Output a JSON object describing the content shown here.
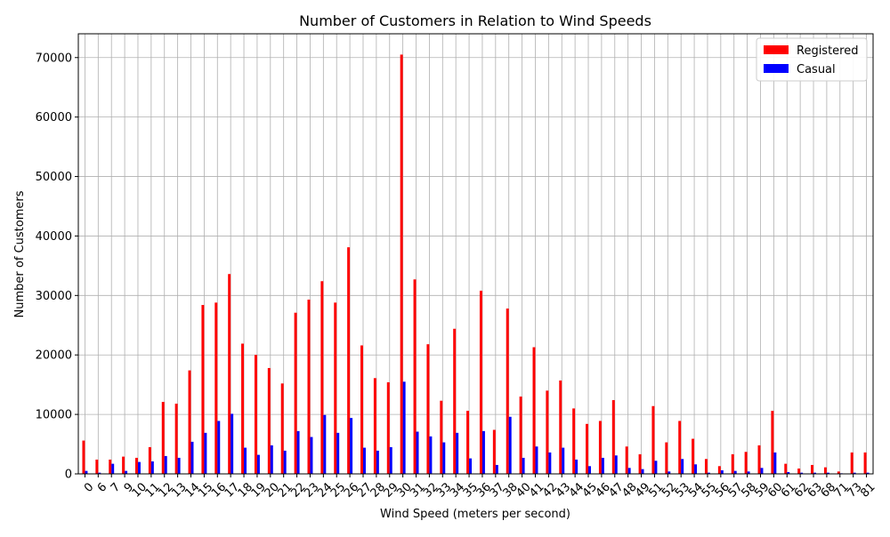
{
  "chart_data": {
    "type": "bar",
    "title": "Number of Customers in Relation to Wind Speeds",
    "xlabel": "Wind Speed (meters per second)",
    "ylabel": "Number of Customers",
    "ylim": [
      0,
      74000
    ],
    "yticks": [
      0,
      10000,
      20000,
      30000,
      40000,
      50000,
      60000,
      70000
    ],
    "grid": true,
    "legend_position": "top-right",
    "categories": [
      "0",
      "6",
      "7",
      "9",
      "10",
      "11",
      "12",
      "13",
      "14",
      "15",
      "16",
      "17",
      "18",
      "19",
      "20",
      "21",
      "22",
      "23",
      "24",
      "25",
      "26",
      "27",
      "28",
      "29",
      "30",
      "31",
      "32",
      "33",
      "34",
      "35",
      "36",
      "37",
      "38",
      "40",
      "41",
      "42",
      "43",
      "44",
      "45",
      "46",
      "47",
      "48",
      "49",
      "51",
      "52",
      "53",
      "54",
      "55",
      "56",
      "57",
      "58",
      "59",
      "60",
      "61",
      "62",
      "63",
      "68",
      "71",
      "73",
      "81"
    ],
    "series": [
      {
        "name": "Registered",
        "color": "#ff0000",
        "values": [
          5600,
          2400,
          2400,
          2900,
          2700,
          4500,
          12100,
          11800,
          17400,
          28400,
          28800,
          33600,
          21900,
          20000,
          17800,
          15200,
          27100,
          29300,
          32400,
          28800,
          38100,
          21600,
          16100,
          15400,
          70500,
          32700,
          21800,
          12300,
          24400,
          10600,
          30800,
          7400,
          27800,
          13000,
          21300,
          14000,
          15700,
          11000,
          8400,
          8900,
          12400,
          4600,
          3300,
          11400,
          5300,
          8900,
          5900,
          2500,
          1300,
          3300,
          3700,
          4800,
          10600,
          1700,
          900,
          1500,
          1100,
          400,
          3600,
          3600
        ]
      },
      {
        "name": "Casual",
        "color": "#0000ff",
        "values": [
          500,
          200,
          1700,
          500,
          2000,
          2100,
          3000,
          2700,
          5400,
          6900,
          8900,
          10100,
          4400,
          3200,
          4800,
          3900,
          7200,
          6200,
          9900,
          6900,
          9400,
          4400,
          3900,
          4500,
          15500,
          7100,
          6300,
          5300,
          6900,
          2600,
          7200,
          1500,
          9600,
          2700,
          4600,
          3600,
          4400,
          2400,
          1300,
          2700,
          3100,
          1000,
          800,
          2200,
          400,
          2500,
          1600,
          200,
          600,
          500,
          400,
          1000,
          3600,
          300,
          200,
          200,
          200,
          100,
          200,
          200
        ]
      }
    ]
  }
}
